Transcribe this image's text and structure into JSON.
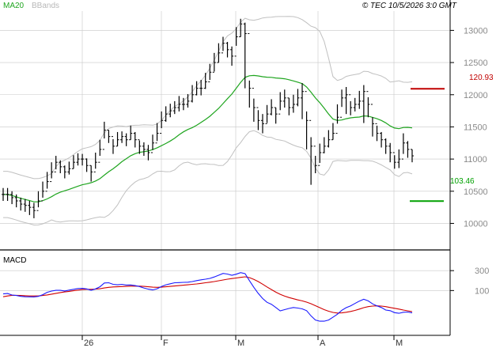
{
  "header": {
    "legend_ma": "MA20",
    "legend_bb": "BBands",
    "timestamp": "© TEC 10/5/2026 3:0 GMT"
  },
  "colors": {
    "price": "#000000",
    "ma": "#1fa51f",
    "bbands": "#c0c0c0",
    "resistance": "#c00000",
    "support": "#00a000",
    "macd": "#1a1aff",
    "signal": "#d00000",
    "axis": "#000000",
    "grid": "#c8c8c8"
  },
  "levels": {
    "resistance_label": "120.93",
    "support_label": "103.46"
  },
  "macd_panel": {
    "title": "MACD"
  },
  "chart_data": [
    {
      "type": "ohlc",
      "y_ticks": [
        "13000",
        "12500",
        "12000",
        "11500",
        "11000",
        "10500",
        "10000"
      ],
      "x_ticks": [
        "26",
        "F",
        "M",
        "A",
        "M"
      ],
      "ylim": [
        9600,
        13300
      ],
      "levels": [
        {
          "name": "resistance",
          "value": 120.93
        },
        {
          "name": "support",
          "value": 103.46
        }
      ],
      "close": [
        10450,
        10450,
        10400,
        10350,
        10300,
        10280,
        10250,
        10200,
        10350,
        10500,
        10650,
        10800,
        10950,
        10880,
        10800,
        10850,
        10950,
        11000,
        11000,
        10900,
        10800,
        10950,
        11150,
        11450,
        11350,
        11200,
        11300,
        11350,
        11300,
        11400,
        11300,
        11200,
        11150,
        11100,
        11250,
        11400,
        11600,
        11700,
        11750,
        11800,
        11850,
        11850,
        11900,
        12000,
        12100,
        12100,
        12200,
        12350,
        12500,
        12650,
        12800,
        12700,
        12600,
        12900,
        13100,
        12950,
        12100,
        11800,
        11600,
        11550,
        11700,
        11800,
        11700,
        11900,
        11950,
        11800,
        11850,
        11950,
        12050,
        11600,
        11200,
        10900,
        11100,
        11200,
        11300,
        11400,
        11650,
        11950,
        12000,
        11800,
        11850,
        11900,
        12050,
        11850,
        11550,
        11400,
        11300,
        11200,
        11100,
        10950,
        11000,
        11250,
        11150,
        11050
      ],
      "high": [
        10550,
        10550,
        10500,
        10450,
        10400,
        10380,
        10350,
        10320,
        10500,
        10650,
        10800,
        10950,
        11050,
        10980,
        10900,
        10960,
        11060,
        11090,
        11080,
        11010,
        10900,
        11100,
        11300,
        11580,
        11450,
        11310,
        11420,
        11430,
        11400,
        11520,
        11420,
        11290,
        11260,
        11220,
        11380,
        11560,
        11740,
        11820,
        11860,
        11900,
        11980,
        11950,
        12010,
        12150,
        12210,
        12230,
        12340,
        12480,
        12650,
        12800,
        12900,
        12820,
        12750,
        13050,
        13180,
        13120,
        12220,
        11940,
        11760,
        11700,
        11840,
        11930,
        11800,
        12040,
        12080,
        11950,
        12000,
        12090,
        12180,
        11740,
        11340,
        11050,
        11240,
        11340,
        11450,
        11560,
        11850,
        12080,
        12120,
        11900,
        11950,
        12060,
        12150,
        11960,
        11650,
        11520,
        11420,
        11320,
        11250,
        11060,
        11150,
        11400,
        11280,
        11150
      ],
      "low": [
        10350,
        10350,
        10300,
        10250,
        10200,
        10180,
        10130,
        10080,
        10250,
        10400,
        10540,
        10700,
        10840,
        10780,
        10700,
        10760,
        10850,
        10900,
        10900,
        10800,
        10650,
        10850,
        11050,
        11320,
        11250,
        11080,
        11200,
        11250,
        11200,
        11300,
        11180,
        11080,
        11050,
        10980,
        11140,
        11280,
        11480,
        11580,
        11650,
        11700,
        11740,
        11760,
        11800,
        11880,
        11990,
        11990,
        12090,
        12230,
        12360,
        12500,
        12680,
        12580,
        12450,
        12760,
        12900,
        12100,
        11800,
        11580,
        11450,
        11400,
        11560,
        11680,
        11550,
        11760,
        11800,
        11680,
        11720,
        11820,
        11620,
        11150,
        10600,
        10780,
        10940,
        11090,
        11180,
        11300,
        11550,
        11810,
        11700,
        11680,
        11740,
        11780,
        11560,
        11650,
        11350,
        11280,
        11180,
        11080,
        10950,
        10850,
        10860,
        11080,
        11020,
        10950
      ]
    },
    {
      "type": "line",
      "title": "MACD",
      "y_ticks": [
        "300",
        "100"
      ],
      "ylim": [
        -350,
        500
      ],
      "series": [
        {
          "values": [
            66,
            70,
            55,
            50,
            42,
            38,
            37,
            36,
            42,
            58,
            82,
            95,
            102,
            102,
            96,
            104,
            112,
            120,
            122,
            116,
            103,
            116,
            138,
            176,
            178,
            162,
            158,
            162,
            155,
            156,
            150,
            140,
            126,
            114,
            106,
            118,
            140,
            158,
            168,
            178,
            180,
            182,
            184,
            190,
            200,
            208,
            214,
            222,
            236,
            254,
            272,
            266,
            254,
            264,
            280,
            270,
            200,
            132,
            72,
            20,
            -18,
            -38,
            -70,
            -104,
            -92,
            -80,
            -70,
            -76,
            -84,
            -102,
            -154,
            -196,
            -208,
            -208,
            -196,
            -168,
            -138,
            -98,
            -72,
            -54,
            -30,
            -6,
            12,
            -4,
            -34,
            -54,
            -70,
            -96,
            -102,
            -122,
            -128,
            -118,
            -116,
            -124
          ]
        },
        {
          "values": [
            38,
            46,
            52,
            52,
            50,
            48,
            46,
            46,
            46,
            50,
            56,
            64,
            72,
            80,
            86,
            92,
            98,
            104,
            110,
            112,
            112,
            114,
            118,
            126,
            132,
            136,
            138,
            140,
            142,
            144,
            144,
            144,
            142,
            138,
            134,
            132,
            134,
            138,
            142,
            146,
            150,
            154,
            158,
            162,
            166,
            172,
            178,
            184,
            190,
            198,
            206,
            214,
            220,
            226,
            232,
            238,
            230,
            212,
            190,
            164,
            136,
            110,
            84,
            62,
            44,
            30,
            18,
            6,
            -4,
            -16,
            -32,
            -52,
            -72,
            -92,
            -108,
            -120,
            -126,
            -124,
            -118,
            -110,
            -100,
            -86,
            -72,
            -62,
            -56,
            -54,
            -56,
            -62,
            -70,
            -78,
            -86,
            -96,
            -104,
            -112
          ]
        }
      ]
    }
  ]
}
